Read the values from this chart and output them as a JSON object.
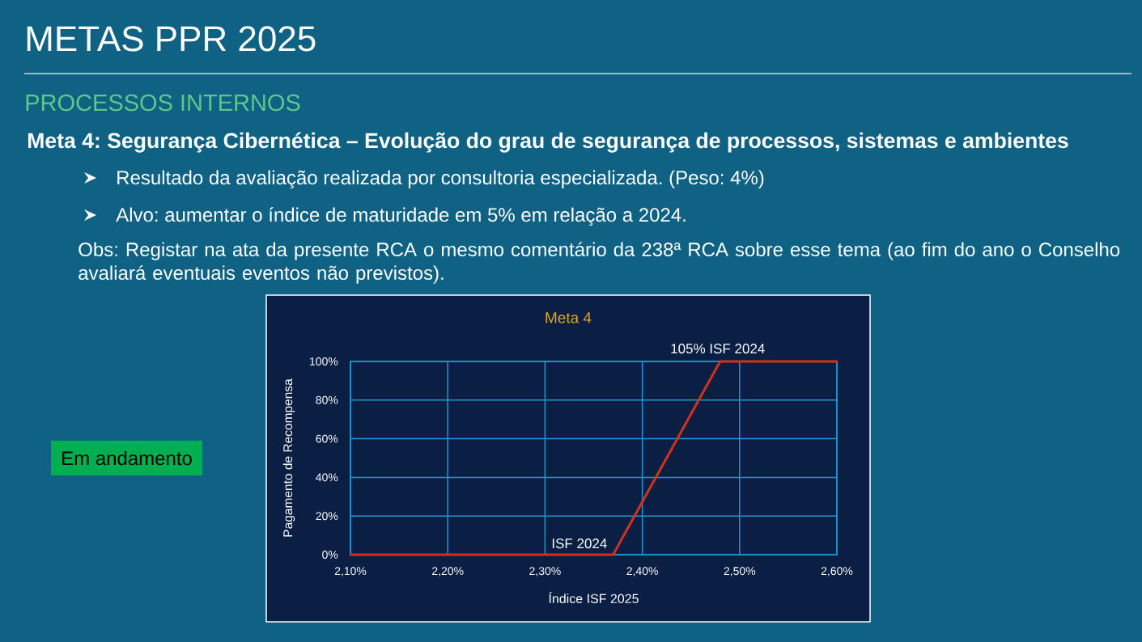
{
  "chart_data": {
    "type": "line",
    "title": "Meta 4",
    "xlabel": "Índice ISF 2025",
    "ylabel": "Pagamento de Recompensa",
    "x": [
      2.1,
      2.37,
      2.48,
      2.6
    ],
    "series": [
      {
        "color": "#d2321c",
        "values": [
          0,
          0,
          100,
          100
        ]
      }
    ],
    "xlim": [
      2.1,
      2.6
    ],
    "ylim": [
      0,
      100
    ],
    "xticks": [
      {
        "value": 2.1,
        "label": "2,10%"
      },
      {
        "value": 2.2,
        "label": "2,20%"
      },
      {
        "value": 2.3,
        "label": "2,30%"
      },
      {
        "value": 2.4,
        "label": "2,40%"
      },
      {
        "value": 2.5,
        "label": "2,50%"
      },
      {
        "value": 2.6,
        "label": "2,60%"
      }
    ],
    "yticks": [
      {
        "value": 0,
        "label": "0%"
      },
      {
        "value": 20,
        "label": "20%"
      },
      {
        "value": 40,
        "label": "40%"
      },
      {
        "value": 60,
        "label": "60%"
      },
      {
        "value": 80,
        "label": "80%"
      },
      {
        "value": 100,
        "label": "100%"
      }
    ],
    "grid": true,
    "line_style": "solid",
    "annotations": [
      {
        "text": "ISF 2024",
        "x": 2.37,
        "y": 0
      },
      {
        "text": "105% ISF 2024",
        "x": 2.48,
        "y": 100
      },
      "METAS PPR 2025",
      "PROCESSOS INTERNOS",
      "Meta 4: Segurança Cibernética – Evolução do grau de segurança de processos, sistemas e ambientes",
      "Resultado da avaliação realizada por consultoria especializada. (Peso: 4%)",
      "Alvo: aumentar o índice de maturidade em 5% em relação a 2024.",
      "Obs: Registar na ata da presente RCA o mesmo comentário da 238ª RCA sobre esse tema (ao fim do ano o Conselho avaliará eventuais eventos não previstos).",
      "Em andamento"
    ]
  }
}
